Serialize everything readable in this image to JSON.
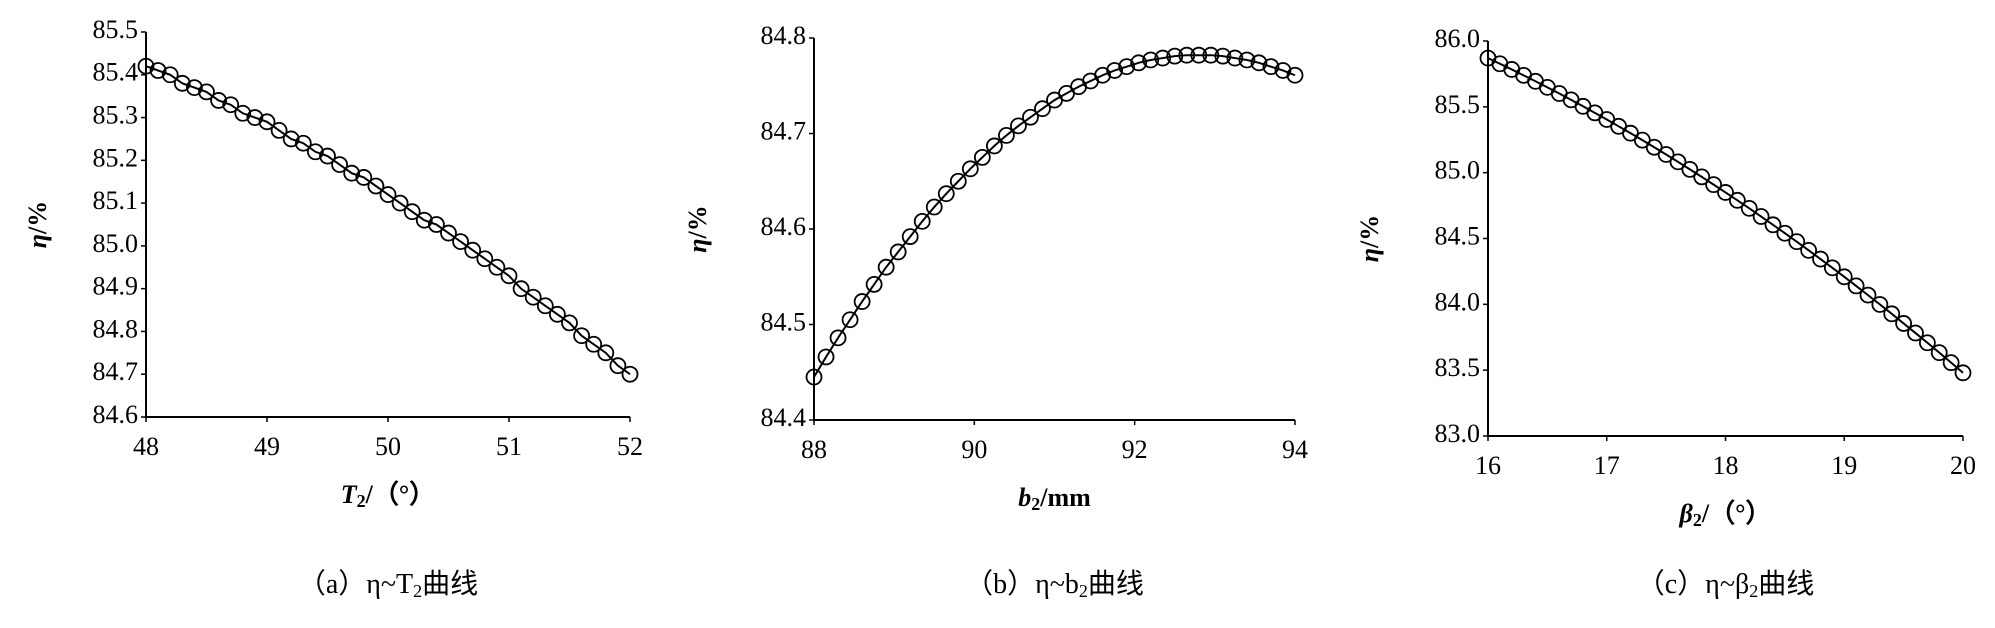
{
  "chart_data": [
    {
      "type": "line",
      "color": "#000000",
      "xlabel": {
        "main": "T",
        "sub": "2",
        "rest": "/（°）"
      },
      "ylabel": {
        "main": "η",
        "rest": "/%"
      },
      "caption": {
        "prefix": "（a）η~T",
        "sub": "2",
        "rest": "曲线"
      },
      "x": [
        48,
        48.1,
        48.2,
        48.3,
        48.4,
        48.5,
        48.6,
        48.7,
        48.8,
        48.9,
        49,
        49.1,
        49.2,
        49.3,
        49.4,
        49.5,
        49.6,
        49.7,
        49.8,
        49.9,
        50,
        50.1,
        50.2,
        50.3,
        50.4,
        50.5,
        50.6,
        50.7,
        50.8,
        50.9,
        51,
        51.1,
        51.2,
        51.3,
        51.4,
        51.5,
        51.6,
        51.7,
        51.8,
        51.9,
        52
      ],
      "values": [
        85.42,
        85.41,
        85.4,
        85.38,
        85.37,
        85.36,
        85.34,
        85.33,
        85.31,
        85.3,
        85.29,
        85.27,
        85.25,
        85.24,
        85.22,
        85.21,
        85.19,
        85.17,
        85.16,
        85.14,
        85.12,
        85.1,
        85.08,
        85.06,
        85.05,
        85.03,
        85.01,
        84.99,
        84.97,
        84.95,
        84.93,
        84.9,
        84.88,
        84.86,
        84.84,
        84.82,
        84.79,
        84.77,
        84.75,
        84.72,
        84.7
      ],
      "xlim": [
        48,
        52
      ],
      "xticks": [
        48,
        49,
        50,
        51,
        52
      ],
      "ylim": [
        84.6,
        85.5
      ],
      "yticks": [
        84.6,
        84.7,
        84.8,
        84.9,
        {
          "value": 85,
          "label": "85.0"
        },
        85.1,
        85.2,
        85.3,
        85.4,
        85.5
      ]
    },
    {
      "type": "line",
      "color": "#000000",
      "xlabel": {
        "main": "b",
        "sub": "2",
        "rest": "/mm"
      },
      "ylabel": {
        "main": "η",
        "rest": "/%"
      },
      "caption": {
        "prefix": "（b）η~b",
        "sub": "2",
        "rest": "曲线"
      },
      "x": [
        88,
        88.15,
        88.3,
        88.45,
        88.6,
        88.75,
        88.9,
        89.05,
        89.2,
        89.35,
        89.5,
        89.65,
        89.8,
        89.95,
        90.1,
        90.25,
        90.4,
        90.55,
        90.7,
        90.85,
        91,
        91.15,
        91.3,
        91.45,
        91.6,
        91.75,
        91.9,
        92.05,
        92.2,
        92.35,
        92.5,
        92.65,
        92.8,
        92.95,
        93.1,
        93.25,
        93.4,
        93.55,
        93.7,
        93.85,
        94
      ],
      "values": [
        84.445,
        84.466,
        84.486,
        84.505,
        84.524,
        84.542,
        84.56,
        84.576,
        84.592,
        84.608,
        84.623,
        84.637,
        84.65,
        84.663,
        84.675,
        84.687,
        84.698,
        84.708,
        84.717,
        84.726,
        84.735,
        84.742,
        84.749,
        84.755,
        84.761,
        84.766,
        84.77,
        84.774,
        84.777,
        84.779,
        84.781,
        84.782,
        84.782,
        84.782,
        84.781,
        84.779,
        84.777,
        84.774,
        84.77,
        84.766,
        84.761
      ],
      "xlim": [
        88,
        94
      ],
      "xticks": [
        88,
        90,
        92,
        94
      ],
      "ylim": [
        84.4,
        84.8
      ],
      "yticks": [
        84.4,
        84.5,
        84.6,
        84.7,
        84.8
      ]
    },
    {
      "type": "line",
      "color": "#000000",
      "xlabel": {
        "main": "β",
        "sub": "2",
        "rest": "/（°）"
      },
      "ylabel": {
        "main": "η",
        "rest": "/%"
      },
      "caption": {
        "prefix": "（c）η~β",
        "sub": "2",
        "rest": "曲线"
      },
      "x": [
        16,
        16.1,
        16.2,
        16.3,
        16.4,
        16.5,
        16.6,
        16.7,
        16.8,
        16.9,
        17,
        17.1,
        17.2,
        17.3,
        17.4,
        17.5,
        17.6,
        17.7,
        17.8,
        17.9,
        18,
        18.1,
        18.2,
        18.3,
        18.4,
        18.5,
        18.6,
        18.7,
        18.8,
        18.9,
        19,
        19.1,
        19.2,
        19.3,
        19.4,
        19.5,
        19.6,
        19.7,
        19.8,
        19.9,
        20
      ],
      "values": [
        85.87,
        85.827,
        85.784,
        85.739,
        85.694,
        85.648,
        85.601,
        85.553,
        85.504,
        85.454,
        85.404,
        85.352,
        85.3,
        85.247,
        85.193,
        85.138,
        85.082,
        85.025,
        84.968,
        84.909,
        84.85,
        84.79,
        84.729,
        84.667,
        84.604,
        84.54,
        84.476,
        84.41,
        84.344,
        84.277,
        84.209,
        84.14,
        84.07,
        83.999,
        83.928,
        83.855,
        83.782,
        83.708,
        83.633,
        83.557,
        83.48
      ],
      "xlim": [
        16,
        20
      ],
      "xticks": [
        16,
        17,
        18,
        19,
        20
      ],
      "ylim": [
        83,
        86
      ],
      "yticks": [
        {
          "value": 83,
          "label": "83.0"
        },
        83.5,
        {
          "value": 84,
          "label": "84.0"
        },
        84.5,
        {
          "value": 85,
          "label": "85.0"
        },
        85.5,
        {
          "value": 86,
          "label": "86.0"
        }
      ]
    }
  ]
}
